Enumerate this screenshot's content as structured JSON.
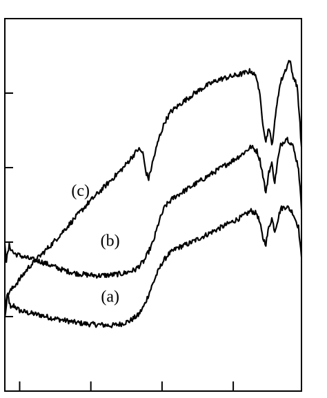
{
  "chart_data": {
    "type": "line",
    "title": "",
    "xlabel": "",
    "ylabel": "",
    "xlim": [
      0,
      100
    ],
    "ylim": [
      0,
      5
    ],
    "xticks": [
      5,
      29,
      53,
      77
    ],
    "yticks": [
      1,
      2,
      3,
      4
    ],
    "tick_labels_visible": false,
    "grid": false,
    "line_color": "#000000",
    "series": [
      {
        "name": "(a)",
        "points": [
          [
            0,
            1.12
          ],
          [
            1,
            1.3
          ],
          [
            2,
            1.1
          ],
          [
            3,
            1.15
          ],
          [
            5,
            1.08
          ],
          [
            8,
            1.05
          ],
          [
            12,
            1.02
          ],
          [
            16,
            0.98
          ],
          [
            20,
            0.95
          ],
          [
            24,
            0.92
          ],
          [
            28,
            0.9
          ],
          [
            32,
            0.89
          ],
          [
            36,
            0.88
          ],
          [
            39,
            0.9
          ],
          [
            42,
            0.94
          ],
          [
            45,
            1.02
          ],
          [
            47,
            1.15
          ],
          [
            49,
            1.35
          ],
          [
            51,
            1.55
          ],
          [
            53,
            1.72
          ],
          [
            55,
            1.83
          ],
          [
            58,
            1.92
          ],
          [
            62,
            1.98
          ],
          [
            66,
            2.06
          ],
          [
            70,
            2.14
          ],
          [
            74,
            2.22
          ],
          [
            77,
            2.28
          ],
          [
            80,
            2.34
          ],
          [
            83,
            2.42
          ],
          [
            85,
            2.38
          ],
          [
            86,
            2.25
          ],
          [
            87,
            2.05
          ],
          [
            88,
            1.98
          ],
          [
            89,
            2.2
          ],
          [
            90,
            2.32
          ],
          [
            91,
            2.15
          ],
          [
            92,
            2.3
          ],
          [
            93,
            2.45
          ],
          [
            95,
            2.48
          ],
          [
            97,
            2.4
          ],
          [
            99,
            2.2
          ],
          [
            100,
            1.78
          ]
        ]
      },
      {
        "name": "(b)",
        "points": [
          [
            0,
            2.0
          ],
          [
            0.5,
            1.75
          ],
          [
            1.5,
            1.95
          ],
          [
            3,
            1.85
          ],
          [
            5,
            1.82
          ],
          [
            8,
            1.78
          ],
          [
            12,
            1.74
          ],
          [
            16,
            1.68
          ],
          [
            20,
            1.62
          ],
          [
            24,
            1.58
          ],
          [
            28,
            1.56
          ],
          [
            32,
            1.55
          ],
          [
            36,
            1.56
          ],
          [
            40,
            1.58
          ],
          [
            44,
            1.63
          ],
          [
            47,
            1.75
          ],
          [
            50,
            2.0
          ],
          [
            52,
            2.28
          ],
          [
            54,
            2.48
          ],
          [
            57,
            2.6
          ],
          [
            61,
            2.7
          ],
          [
            65,
            2.8
          ],
          [
            69,
            2.9
          ],
          [
            73,
            3.0
          ],
          [
            77,
            3.1
          ],
          [
            80,
            3.18
          ],
          [
            83,
            3.28
          ],
          [
            85,
            3.22
          ],
          [
            86,
            3.1
          ],
          [
            87,
            2.9
          ],
          [
            88,
            2.65
          ],
          [
            89,
            2.95
          ],
          [
            90,
            3.05
          ],
          [
            91,
            2.8
          ],
          [
            92,
            3.1
          ],
          [
            93,
            3.3
          ],
          [
            95,
            3.4
          ],
          [
            97,
            3.3
          ],
          [
            99,
            3.0
          ],
          [
            100,
            2.45
          ]
        ]
      },
      {
        "name": "(c)",
        "points": [
          [
            0,
            1.02
          ],
          [
            1,
            1.3
          ],
          [
            3,
            1.4
          ],
          [
            5,
            1.5
          ],
          [
            8,
            1.66
          ],
          [
            12,
            1.82
          ],
          [
            16,
            1.98
          ],
          [
            20,
            2.16
          ],
          [
            24,
            2.34
          ],
          [
            28,
            2.52
          ],
          [
            32,
            2.68
          ],
          [
            36,
            2.84
          ],
          [
            40,
            3.0
          ],
          [
            43,
            3.15
          ],
          [
            45,
            3.25
          ],
          [
            46.5,
            3.2
          ],
          [
            47.5,
            2.95
          ],
          [
            48.5,
            2.85
          ],
          [
            50,
            3.1
          ],
          [
            52,
            3.4
          ],
          [
            54,
            3.62
          ],
          [
            56,
            3.75
          ],
          [
            60,
            3.88
          ],
          [
            64,
            4.0
          ],
          [
            68,
            4.1
          ],
          [
            72,
            4.18
          ],
          [
            76,
            4.22
          ],
          [
            80,
            4.26
          ],
          [
            83,
            4.3
          ],
          [
            85,
            4.2
          ],
          [
            86,
            3.95
          ],
          [
            87,
            3.6
          ],
          [
            88,
            3.35
          ],
          [
            89,
            3.55
          ],
          [
            90,
            3.3
          ],
          [
            91,
            3.6
          ],
          [
            92,
            3.95
          ],
          [
            93,
            4.15
          ],
          [
            94.5,
            4.3
          ],
          [
            96,
            4.45
          ],
          [
            97,
            4.25
          ],
          [
            98.5,
            4.1
          ],
          [
            99.5,
            3.6
          ],
          [
            100,
            3.25
          ]
        ]
      }
    ]
  }
}
